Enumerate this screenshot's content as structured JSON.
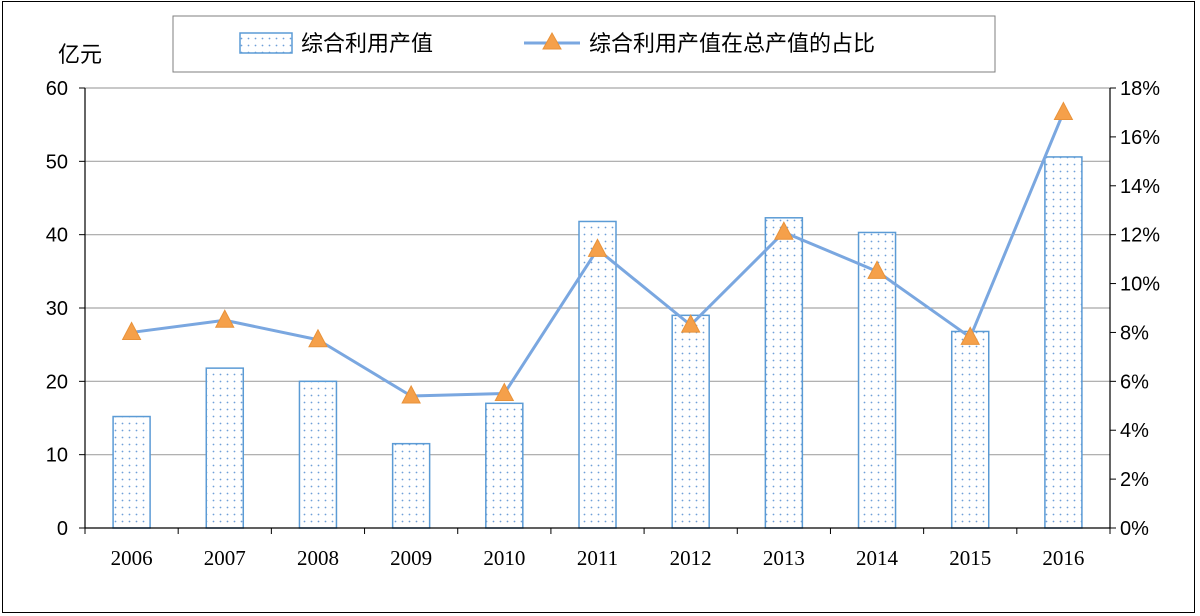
{
  "chart_data": {
    "type": "bar+line",
    "categories": [
      "2006",
      "2007",
      "2008",
      "2009",
      "2010",
      "2011",
      "2012",
      "2013",
      "2014",
      "2015",
      "2016"
    ],
    "series": [
      {
        "name": "综合利用产值",
        "type": "bar",
        "axis": "left",
        "values": [
          15.2,
          21.8,
          20.0,
          11.5,
          17.0,
          41.8,
          29.0,
          42.3,
          40.3,
          26.8,
          50.6
        ]
      },
      {
        "name": "综合利用产值在总产值的占比",
        "type": "line",
        "axis": "right",
        "values": [
          8.0,
          8.5,
          7.7,
          5.4,
          5.5,
          11.4,
          8.3,
          12.1,
          10.5,
          7.8,
          17.0
        ]
      }
    ],
    "y_left": {
      "unit": "亿元",
      "min": 0,
      "max": 60,
      "ticks": [
        "0",
        "10",
        "20",
        "30",
        "40",
        "50",
        "60"
      ]
    },
    "y_right": {
      "min": 0,
      "max": 18,
      "ticks": [
        "0%",
        "2%",
        "4%",
        "6%",
        "8%",
        "10%",
        "12%",
        "14%",
        "16%",
        "18%"
      ]
    },
    "grid": true,
    "legend_position": "top",
    "colors": {
      "bar_border": "#5b9bd5",
      "bar_dots": "#6f9fd8",
      "line": "#7aa7e0",
      "marker": "#f5a04a",
      "grid": "#a6a6a6"
    }
  }
}
